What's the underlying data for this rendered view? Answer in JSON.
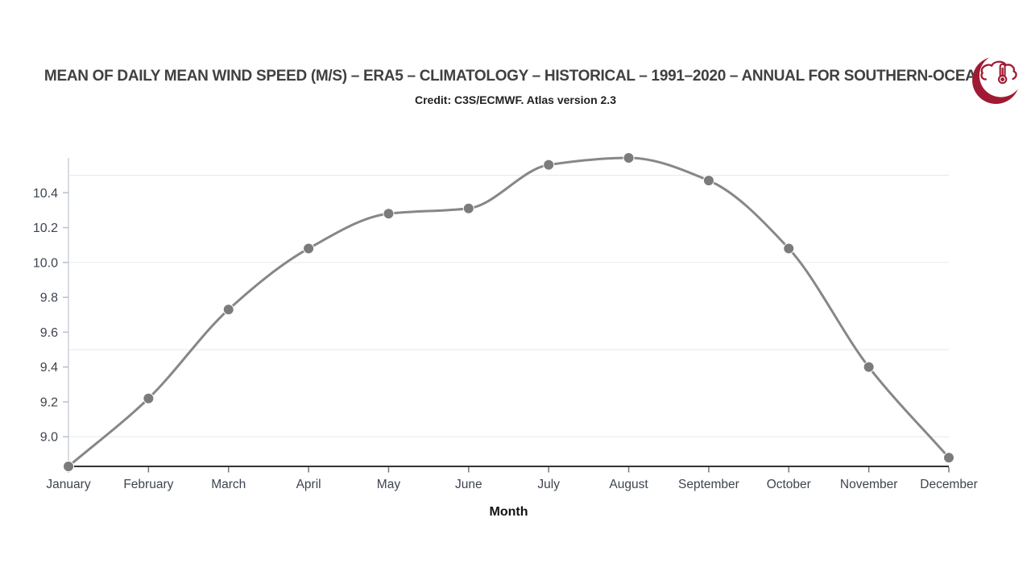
{
  "header": {
    "logo_icon": "cloud-thermometer-crescent-icon"
  },
  "chart_data": {
    "type": "line",
    "title": "MEAN OF DAILY MEAN WIND SPEED (M/S) – ERA5 – CLIMATOLOGY – HISTORICAL – 1991–2020 – ANNUAL FOR SOUTHERN-OCEAN",
    "subtitle": "Credit: C3S/ECMWF. Atlas version 2.3",
    "categories": [
      "January",
      "February",
      "March",
      "April",
      "May",
      "June",
      "July",
      "August",
      "September",
      "October",
      "November",
      "December"
    ],
    "values": [
      8.83,
      9.22,
      9.73,
      10.08,
      10.28,
      10.31,
      10.56,
      10.6,
      10.47,
      10.08,
      9.4,
      8.88
    ],
    "xlabel": "Month",
    "ylabel": "",
    "ylim": [
      8.83,
      10.6
    ],
    "yticks": [
      9.0,
      9.2,
      9.4,
      9.6,
      9.8,
      10.0,
      10.2,
      10.4
    ],
    "gridline_values": [
      9.0,
      9.5,
      10.0,
      10.5
    ],
    "grid": "horizontal-only",
    "legend": "none",
    "curve": "smooth-monotone",
    "colors": {
      "line": "#878787",
      "point": "#7b7b7b",
      "grid": "#eaecee",
      "x_axis": "#333333",
      "y_axis": "#ccd2da",
      "y_tick": "#b9bfc9",
      "x_tick": "#777777",
      "tick_label": "#3d4450",
      "title": "#404040",
      "subtitle": "#222222",
      "xlabel": "#111111",
      "logo": "#a01a33"
    }
  }
}
